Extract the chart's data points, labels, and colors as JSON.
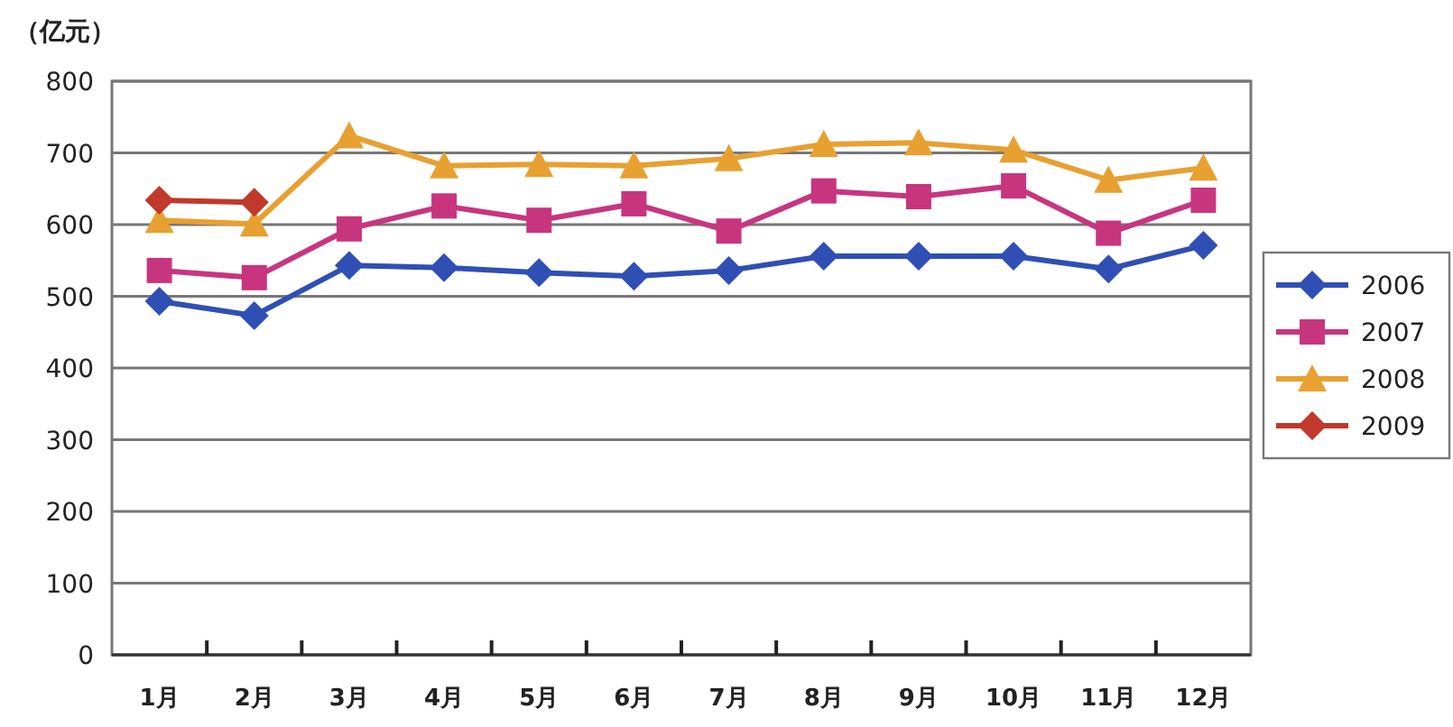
{
  "chart_data": {
    "type": "line",
    "ylabel": "（亿元）",
    "categories": [
      "1月",
      "2月",
      "3月",
      "4月",
      "5月",
      "6月",
      "7月",
      "8月",
      "9月",
      "10月",
      "11月",
      "12月"
    ],
    "ylim": [
      0,
      800
    ],
    "yticks": [
      0,
      100,
      200,
      300,
      400,
      500,
      600,
      700,
      800
    ],
    "grid": "y",
    "legend": "right",
    "series": [
      {
        "name": "2006",
        "color": "#2f4fb5",
        "marker": "diamond",
        "values": [
          493,
          473,
          543,
          540,
          533,
          528,
          536,
          556,
          556,
          556,
          538,
          571
        ]
      },
      {
        "name": "2007",
        "color": "#c8357f",
        "marker": "square",
        "values": [
          536,
          526,
          594,
          626,
          606,
          629,
          591,
          647,
          639,
          654,
          588,
          634
        ]
      },
      {
        "name": "2008",
        "color": "#e8a030",
        "marker": "triangle",
        "values": [
          606,
          601,
          724,
          682,
          684,
          682,
          692,
          712,
          714,
          704,
          662,
          679
        ]
      },
      {
        "name": "2009",
        "color": "#c0392b",
        "marker": "diamond",
        "values": [
          634,
          631,
          null,
          null,
          null,
          null,
          null,
          null,
          null,
          null,
          null,
          null
        ]
      }
    ]
  }
}
